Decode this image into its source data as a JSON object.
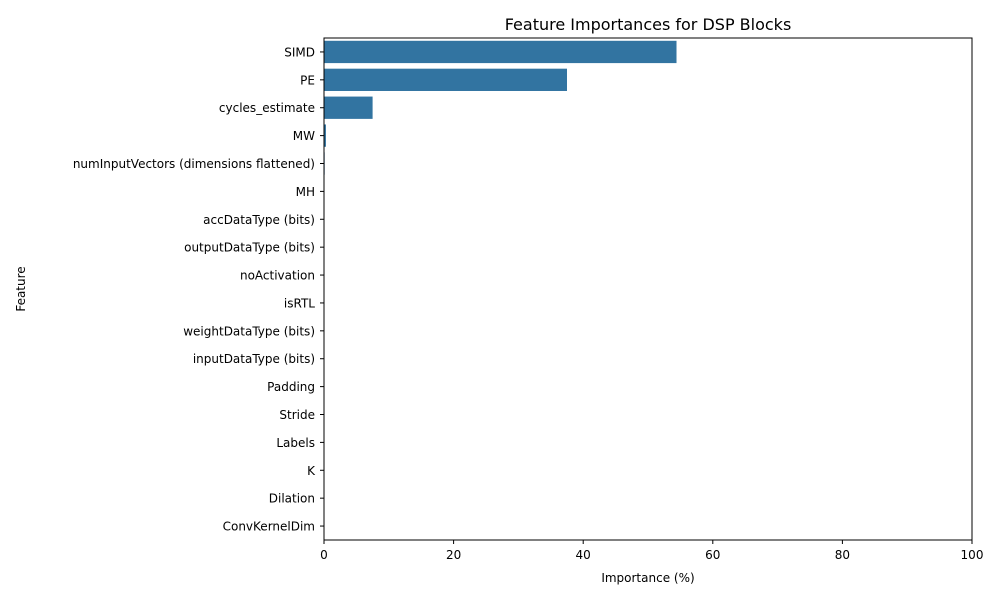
{
  "chart_data": {
    "type": "bar",
    "orientation": "horizontal",
    "title": "Feature Importances for DSP Blocks",
    "xlabel": "Importance (%)",
    "ylabel": "Feature",
    "xlim": [
      0,
      100
    ],
    "x_ticks": [
      0,
      20,
      40,
      60,
      80,
      100
    ],
    "grid": false,
    "bar_color": "#3274a1",
    "categories": [
      "SIMD",
      "PE",
      "cycles_estimate",
      "MW",
      "numInputVectors (dimensions flattened)",
      "MH",
      "accDataType (bits)",
      "outputDataType (bits)",
      "noActivation",
      "isRTL",
      "weightDataType (bits)",
      "inputDataType (bits)",
      "Padding",
      "Stride",
      "Labels",
      "K",
      "Dilation",
      "ConvKernelDim"
    ],
    "values": [
      54.4,
      37.5,
      7.5,
      0.3,
      0.1,
      0.05,
      0.02,
      0.02,
      0.01,
      0.01,
      0.01,
      0.01,
      0,
      0,
      0,
      0,
      0,
      0
    ]
  }
}
